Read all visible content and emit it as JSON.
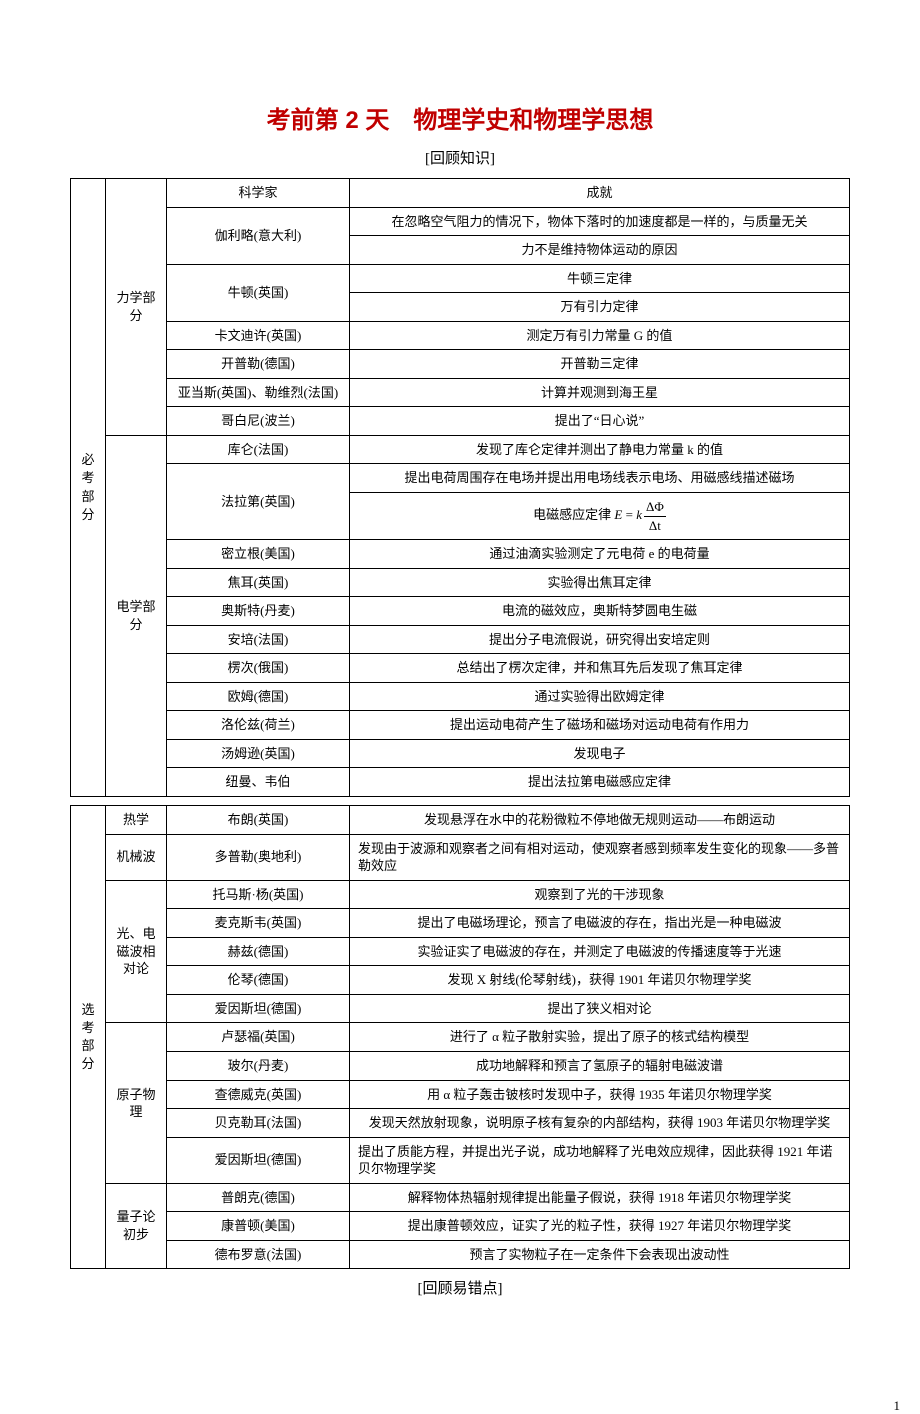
{
  "title": {
    "text": "考前第 2 天　物理学史和物理学思想",
    "color": "#c00000",
    "fontsize": 24,
    "fontfamily": "SimHei"
  },
  "subtitle": "[回顾知识]",
  "table_border_color": "#000000",
  "base_fontsize": 13,
  "background_color": "#ffffff",
  "footer_subtitle": "[回顾易错点]",
  "page_number": "1",
  "sections": [
    {
      "side": "必考部分",
      "blocks": [
        {
          "category": "力学部分",
          "header": {
            "scientist": "科学家",
            "achievement": "成就"
          },
          "rows": [
            {
              "scientist": "伽利略(意大利)",
              "span": 2,
              "achievements": [
                "在忽略空气阻力的情况下，物体下落时的加速度都是一样的，与质量无关",
                "力不是维持物体运动的原因"
              ]
            },
            {
              "scientist": "牛顿(英国)",
              "span": 2,
              "achievements": [
                "牛顿三定律",
                "万有引力定律"
              ]
            },
            {
              "scientist": "卡文迪许(英国)",
              "span": 1,
              "achievements": [
                "测定万有引力常量 G 的值"
              ]
            },
            {
              "scientist": "开普勒(德国)",
              "span": 1,
              "achievements": [
                "开普勒三定律"
              ]
            },
            {
              "scientist": "亚当斯(英国)、勒维烈(法国)",
              "span": 1,
              "achievements": [
                "计算并观测到海王星"
              ]
            },
            {
              "scientist": "哥白尼(波兰)",
              "span": 1,
              "achievements": [
                "提出了“日心说”"
              ]
            }
          ]
        },
        {
          "category": "电学部分",
          "rows": [
            {
              "scientist": "库仑(法国)",
              "span": 1,
              "achievements": [
                "发现了库仑定律并测出了静电力常量 k 的值"
              ]
            },
            {
              "scientist": "法拉第(英国)",
              "span": 2,
              "achievements": [
                "提出电荷周围存在电场并提出用电场线表示电场、用磁感线描述磁场",
                "FORMULA"
              ]
            },
            {
              "scientist": "密立根(美国)",
              "span": 1,
              "achievements": [
                "通过油滴实验测定了元电荷 e 的电荷量"
              ]
            },
            {
              "scientist": "焦耳(英国)",
              "span": 1,
              "achievements": [
                "实验得出焦耳定律"
              ]
            },
            {
              "scientist": "奥斯特(丹麦)",
              "span": 1,
              "achievements": [
                "电流的磁效应，奥斯特梦圆电生磁"
              ]
            },
            {
              "scientist": "安培(法国)",
              "span": 1,
              "achievements": [
                "提出分子电流假说，研究得出安培定则"
              ]
            },
            {
              "scientist": "楞次(俄国)",
              "span": 1,
              "achievements": [
                "总结出了楞次定律，并和焦耳先后发现了焦耳定律"
              ]
            },
            {
              "scientist": "欧姆(德国)",
              "span": 1,
              "achievements": [
                "通过实验得出欧姆定律"
              ]
            },
            {
              "scientist": "洛伦兹(荷兰)",
              "span": 1,
              "achievements": [
                "提出运动电荷产生了磁场和磁场对运动电荷有作用力"
              ]
            },
            {
              "scientist": "汤姆逊(英国)",
              "span": 1,
              "achievements": [
                "发现电子"
              ]
            },
            {
              "scientist": "纽曼、韦伯",
              "span": 1,
              "achievements": [
                "提出法拉第电磁感应定律"
              ]
            }
          ]
        }
      ]
    },
    {
      "side": "选考部分",
      "blocks": [
        {
          "category": "热学",
          "rows": [
            {
              "scientist": "布朗(英国)",
              "span": 1,
              "achievements": [
                "发现悬浮在水中的花粉微粒不停地做无规则运动——布朗运动"
              ]
            }
          ]
        },
        {
          "category": "机械波",
          "rows": [
            {
              "scientist": "多普勒(奥地利)",
              "span": 1,
              "align": "left",
              "achievements": [
                "发现由于波源和观察者之间有相对运动，使观察者感到频率发生变化的现象——多普勒效应"
              ]
            }
          ]
        },
        {
          "category": "光、电磁波相对论",
          "rows": [
            {
              "scientist": "托马斯·杨(英国)",
              "span": 1,
              "achievements": [
                "观察到了光的干涉现象"
              ]
            },
            {
              "scientist": "麦克斯韦(英国)",
              "span": 1,
              "achievements": [
                "提出了电磁场理论，预言了电磁波的存在，指出光是一种电磁波"
              ]
            },
            {
              "scientist": "赫兹(德国)",
              "span": 1,
              "achievements": [
                "实验证实了电磁波的存在，并测定了电磁波的传播速度等于光速"
              ]
            },
            {
              "scientist": "伦琴(德国)",
              "span": 1,
              "achievements": [
                "发现 X 射线(伦琴射线)，获得 1901 年诺贝尔物理学奖"
              ]
            },
            {
              "scientist": "爱因斯坦(德国)",
              "span": 1,
              "achievements": [
                "提出了狭义相对论"
              ]
            }
          ]
        },
        {
          "category": "原子物理",
          "rows": [
            {
              "scientist": "卢瑟福(英国)",
              "span": 1,
              "achievements": [
                "进行了 α 粒子散射实验，提出了原子的核式结构模型"
              ]
            },
            {
              "scientist": "玻尔(丹麦)",
              "span": 1,
              "achievements": [
                "成功地解释和预言了氢原子的辐射电磁波谱"
              ]
            },
            {
              "scientist": "查德威克(英国)",
              "span": 1,
              "achievements": [
                "用 α 粒子轰击铍核时发现中子，获得 1935 年诺贝尔物理学奖"
              ]
            },
            {
              "scientist": "贝克勒耳(法国)",
              "span": 1,
              "achievements": [
                "发现天然放射现象，说明原子核有复杂的内部结构，获得 1903 年诺贝尔物理学奖"
              ]
            },
            {
              "scientist": "爱因斯坦(德国)",
              "span": 1,
              "align": "left",
              "achievements": [
                "提出了质能方程，并提出光子说，成功地解释了光电效应规律，因此获得 1921 年诺贝尔物理学奖"
              ]
            }
          ]
        },
        {
          "category": "量子论初步",
          "rows": [
            {
              "scientist": "普朗克(德国)",
              "span": 1,
              "achievements": [
                "解释物体热辐射规律提出能量子假说，获得 1918 年诺贝尔物理学奖"
              ]
            },
            {
              "scientist": "康普顿(美国)",
              "span": 1,
              "achievements": [
                "提出康普顿效应，证实了光的粒子性，获得 1927 年诺贝尔物理学奖"
              ]
            },
            {
              "scientist": "德布罗意(法国)",
              "span": 1,
              "achievements": [
                "预言了实物粒子在一定条件下会表现出波动性"
              ]
            }
          ]
        }
      ]
    }
  ],
  "formula": {
    "prefix": "电磁感应定律 ",
    "lhs": "E",
    "eq": " = ",
    "k": "k",
    "frac_nom": "ΔΦ",
    "frac_den": "Δt"
  }
}
